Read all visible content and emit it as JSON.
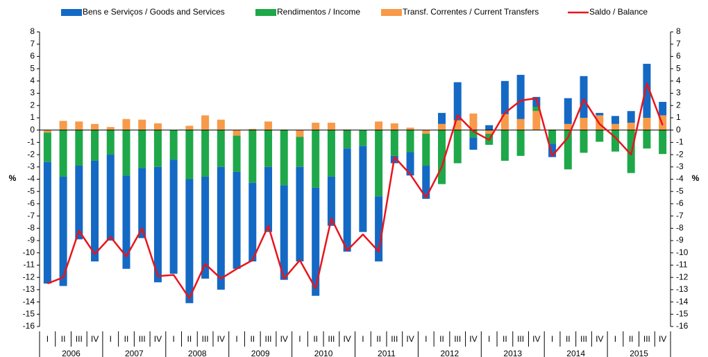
{
  "chart_data": {
    "type": "bar",
    "ylabel": "%",
    "y2label": "%",
    "categories": [
      "I",
      "II",
      "III",
      "IV",
      "I",
      "II",
      "III",
      "IV",
      "I",
      "II",
      "III",
      "IV",
      "I",
      "II",
      "III",
      "IV",
      "I",
      "II",
      "III",
      "IV",
      "I",
      "II",
      "III",
      "IV",
      "I",
      "II",
      "III",
      "IV",
      "I",
      "II",
      "III",
      "IV",
      "I",
      "II",
      "III",
      "IV",
      "I",
      "II",
      "III",
      "IV"
    ],
    "years": [
      "2006",
      "2007",
      "2008",
      "2009",
      "2010",
      "2011",
      "2012",
      "2013",
      "2014",
      "2015"
    ],
    "ylim": [
      -16,
      8
    ],
    "yticks": [
      -16,
      -15,
      -14,
      -13,
      -12,
      -11,
      -10,
      -9,
      -8,
      -7,
      -6,
      -5,
      -4,
      -3,
      -2,
      -1,
      0,
      1,
      2,
      3,
      4,
      5,
      6,
      7,
      8
    ],
    "series": [
      {
        "name": "Bens e Serviços / Goods and Services",
        "color": "#1469c4",
        "values": [
          -9.9,
          -8.9,
          -6.0,
          -8.2,
          -7.0,
          -7.6,
          -5.7,
          -9.4,
          -9.3,
          -10.1,
          -8.3,
          -10.0,
          -7.9,
          -6.4,
          -5.3,
          -7.7,
          -7.7,
          -8.8,
          -4.0,
          -8.4,
          -7.0,
          -5.3,
          -0.6,
          -1.9,
          -2.7,
          0.9,
          3.1,
          -1.0,
          0.4,
          2.7,
          3.6,
          0.8,
          -1.1,
          2.1,
          3.4,
          0.2,
          0.65,
          0.95,
          4.4,
          1.1
        ]
      },
      {
        "name": "Rendimentos / Income",
        "color": "#1ea84a",
        "values": [
          -2.4,
          -3.8,
          -2.9,
          -2.5,
          -2.0,
          -3.7,
          -3.1,
          -3.0,
          -2.4,
          -4.0,
          -3.8,
          -3.0,
          -2.95,
          -4.3,
          -3.0,
          -4.5,
          -2.45,
          -4.7,
          -3.8,
          -1.5,
          -1.3,
          -5.4,
          -2.1,
          -1.8,
          -2.6,
          -4.4,
          -2.7,
          -0.6,
          -0.9,
          -2.5,
          -2.1,
          0.35,
          -1.1,
          -3.2,
          -1.85,
          -0.95,
          -1.75,
          -3.5,
          -1.5,
          -1.95
        ]
      },
      {
        "name": "Transf. Correntes / Current Transfers",
        "color": "#f79a4a",
        "values": [
          -0.2,
          0.75,
          0.7,
          0.5,
          0.25,
          0.9,
          0.85,
          0.55,
          0,
          0.35,
          1.2,
          0.85,
          -0.45,
          0.1,
          0.7,
          0.05,
          -0.55,
          0.6,
          0.6,
          0.05,
          0,
          0.7,
          0.55,
          0.2,
          -0.3,
          0.5,
          0.8,
          1.35,
          -0.3,
          1.3,
          0.9,
          1.55,
          0.05,
          0.5,
          1.0,
          1.2,
          0.5,
          0.6,
          1.0,
          1.2
        ]
      },
      {
        "name": "Saldo / Balance",
        "color": "#e8141c",
        "type": "line",
        "values": [
          -12.5,
          -12.0,
          -8.2,
          -10.1,
          -8.7,
          -10.3,
          -8.0,
          -11.9,
          -11.8,
          -13.7,
          -10.9,
          -12.1,
          -11.3,
          -10.6,
          -7.8,
          -12.1,
          -10.6,
          -12.9,
          -7.2,
          -9.8,
          -8.5,
          -9.9,
          -2.2,
          -3.6,
          -5.5,
          -3.0,
          1.2,
          -0.1,
          -0.8,
          1.4,
          2.4,
          2.6,
          -2.1,
          -0.6,
          2.5,
          0.5,
          -0.6,
          -2.0,
          3.8,
          0.4
        ]
      }
    ]
  }
}
